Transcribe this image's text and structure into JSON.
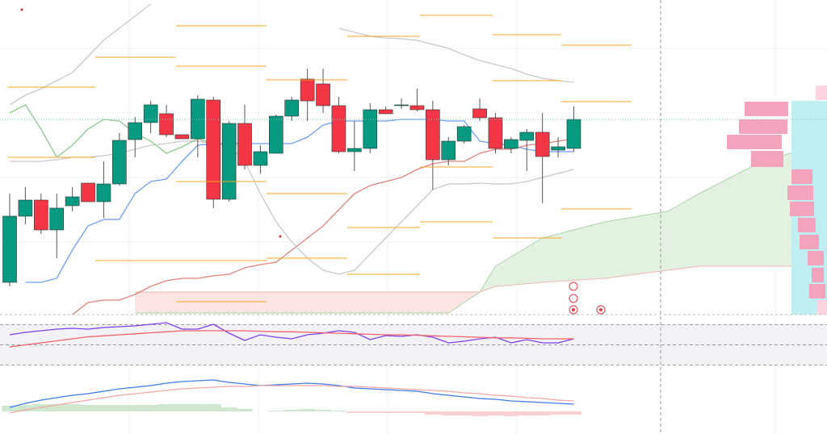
{
  "chart_data": [
    {
      "type": "candlestick",
      "categories": [
        null,
        null,
        null,
        null,
        null,
        null,
        null,
        null,
        null,
        null,
        null,
        null,
        null,
        null,
        null,
        null,
        null,
        null,
        null,
        null,
        null,
        null,
        null,
        null,
        null,
        null,
        null,
        null,
        null,
        null,
        null,
        null,
        null,
        null,
        null,
        null,
        null
      ],
      "xlim": [
        -0.62,
        52.16
      ],
      "ylim": [
        0,
        390
      ],
      "up_color": "#089981",
      "down_color": "#f23645",
      "open": [
        40,
        122,
        142,
        105,
        135,
        163,
        140,
        162,
        217,
        238,
        249,
        223,
        218,
        266,
        143,
        237,
        185,
        200,
        246,
        292,
        286,
        259,
        202,
        206,
        254,
        260,
        259,
        254,
        192,
        215,
        255,
        244,
        206,
        216,
        226,
        204,
        206
      ],
      "high": [
        150,
        158,
        150,
        150,
        158,
        163,
        190,
        225,
        245,
        265,
        260,
        223,
        272,
        270,
        240,
        260,
        210,
        248,
        270,
        305,
        305,
        270,
        240,
        262,
        258,
        268,
        280,
        265,
        220,
        235,
        268,
        250,
        220,
        230,
        250,
        220,
        258
      ],
      "low": [
        35,
        112,
        100,
        70,
        128,
        140,
        120,
        160,
        195,
        225,
        220,
        218,
        195,
        132,
        140,
        180,
        175,
        200,
        240,
        240,
        250,
        200,
        178,
        200,
        249,
        255,
        252,
        155,
        185,
        212,
        240,
        200,
        200,
        178,
        138,
        195,
        202
      ],
      "close": [
        122,
        142,
        105,
        132,
        146,
        140,
        162,
        216,
        238,
        260,
        223,
        218,
        267,
        143,
        237,
        185,
        202,
        246,
        266,
        265,
        259,
        202,
        206,
        254,
        249,
        260,
        254,
        192,
        215,
        233,
        244,
        206,
        217,
        226,
        196,
        208,
        242
      ],
      "series": [
        {
          "color": "#6f9ef0",
          "values": [
            null,
            40,
            40,
            45,
            80,
            110,
            118,
            118,
            150,
            165,
            168,
            190,
            210,
            212,
            212,
            212,
            212,
            212,
            212,
            220,
            235,
            240,
            240,
            240,
            240,
            242,
            242,
            242,
            240,
            240,
            215,
            212,
            210,
            205,
            202,
            202,
            202
          ]
        },
        {
          "color": "#e0837a",
          "values": [
            null,
            null,
            null,
            null,
            0,
            15,
            18,
            18,
            25,
            35,
            42,
            45,
            45,
            48,
            50,
            58,
            62,
            65,
            80,
            95,
            110,
            130,
            150,
            160,
            165,
            170,
            180,
            187,
            190,
            190,
            200,
            205,
            205,
            210,
            212,
            215,
            218
          ]
        },
        {
          "color": "#c8c8c8",
          "values": [
            260,
            272,
            280,
            290,
            300,
            320,
            340,
            355,
            370,
            385,
            null,
            null,
            null,
            null,
            null,
            null,
            null,
            null,
            null,
            null,
            null,
            355,
            350,
            345,
            343,
            342,
            340,
            335,
            330,
            322,
            315,
            310,
            305,
            298,
            293,
            290,
            288
          ]
        },
        {
          "color": "#c8c8c8",
          "values": [
            190,
            190,
            190,
            192,
            195,
            195,
            197,
            200,
            205,
            210,
            212,
            215,
            215,
            212,
            210,
            190,
            150,
            115,
            90,
            70,
            55,
            50,
            55,
            75,
            95,
            115,
            135,
            155,
            162,
            162,
            163,
            162,
            162,
            165,
            170,
            175,
            180
          ]
        },
        {
          "color": "#8cc98c",
          "values": [
            250,
            260,
            230,
            195,
            210,
            230,
            242,
            240,
            225,
            215,
            200,
            208,
            218,
            212,
            null,
            null,
            null,
            null,
            null,
            null,
            null,
            null,
            null,
            null,
            null,
            null,
            null,
            null,
            null,
            null,
            null,
            null,
            null,
            null,
            null,
            null,
            null
          ]
        }
      ],
      "cloud": {
        "x": [
          8,
          12,
          16,
          20,
          24,
          28,
          30,
          31,
          34,
          38,
          42,
          44,
          48,
          52
        ],
        "span_a": [
          2,
          2,
          2,
          2,
          2,
          2,
          28,
          60,
          95,
          115,
          128,
          150,
          190,
          212
        ],
        "span_b": [
          28,
          28,
          28,
          28,
          28,
          28,
          28,
          35,
          40,
          45,
          55,
          60,
          60,
          60
        ],
        "up_color": "#e3f1e1",
        "down_color": "#fbe4e2"
      }
    },
    {
      "type": "line",
      "xlim": [
        -0.62,
        52.16
      ],
      "ylim": [
        20,
        80
      ],
      "hlines": [
        30,
        50,
        70
      ],
      "series": [
        {
          "color": "#7e3ff2",
          "values": [
            60,
            62.4,
            64,
            65.6,
            66.4,
            65.6,
            67.2,
            68,
            68.8,
            70.4,
            72,
            65.6,
            65.6,
            70.4,
            61.6,
            54.4,
            60,
            57.6,
            56,
            60,
            61.6,
            64,
            62.4,
            55.2,
            59.2,
            58.4,
            60,
            57.6,
            52,
            53.6,
            56,
            57.6,
            52,
            55.2,
            52,
            52,
            56
          ]
        },
        {
          "color": "#f0626a",
          "values": [
            48,
            50,
            52,
            54,
            56,
            58,
            59,
            60,
            61,
            62,
            63,
            64,
            64,
            64,
            64,
            64,
            63.5,
            63,
            63,
            62.5,
            62,
            61.5,
            61,
            60.5,
            60,
            60,
            59.5,
            59,
            58.5,
            58,
            57.5,
            57,
            57,
            56.5,
            56,
            56,
            56
          ]
        }
      ]
    },
    {
      "type": "line",
      "xlim": [
        -0.62,
        52.16
      ],
      "ylim": [
        -15,
        70
      ],
      "histogram": {
        "up_color": "#cde8cf",
        "down_color": "#fbd0d3",
        "values": [
          7,
          8,
          9,
          9,
          9,
          8,
          8,
          8,
          8,
          8,
          9,
          9,
          9,
          9,
          5,
          3,
          0,
          1,
          2,
          3,
          2,
          1,
          -2,
          -2,
          -2,
          -2,
          -2,
          -4,
          -5,
          -5,
          -6,
          -5,
          -6,
          -5,
          -5,
          -4,
          -4
        ]
      },
      "series": [
        {
          "color": "#3f7ae8",
          "values": [
            5,
            10,
            14,
            17,
            20,
            22,
            25,
            28,
            30,
            32,
            35,
            37,
            38,
            39,
            36,
            34,
            32,
            33,
            34,
            35,
            34,
            32,
            29,
            28,
            27,
            26,
            25,
            22,
            20,
            18,
            16,
            15,
            13,
            12,
            11,
            10,
            9
          ]
        },
        {
          "color": "#f4a5a5",
          "values": [
            -2,
            2,
            5,
            8,
            11,
            14,
            17,
            20,
            22,
            24,
            26,
            28,
            29,
            30,
            31,
            31,
            32,
            32,
            32,
            32,
            32,
            31,
            31,
            30,
            29,
            28,
            27,
            26,
            25,
            23,
            22,
            20,
            19,
            17,
            16,
            14,
            13
          ]
        }
      ]
    }
  ]
}
